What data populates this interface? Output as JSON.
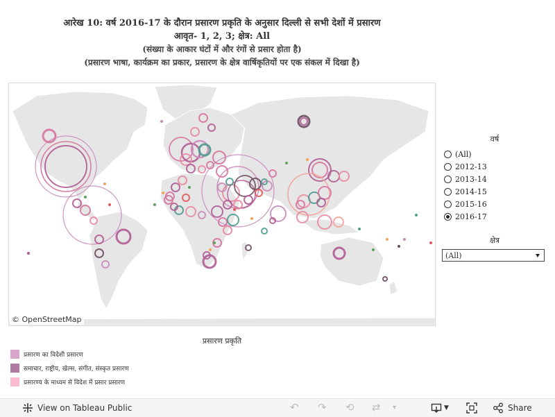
{
  "title": {
    "line1": "आरेख 10: वर्ष   2016-17 के दौरान प्रसारण प्रकृति के अनुसार दिल्ली से सभी देशों में प्रसारण",
    "line2": "आवृत- 1, 2, 3; क्षेत्र:  All",
    "line3": "(संख्या के आकार घंटों में और रंगों से प्रसार होता है)",
    "line4": "(प्रसारण भाषा, कार्यक्रम का प्रकार, प्रसारण के क्षेत्र वार्षिकृतियों पर एक संकल में दिखा है)"
  },
  "map": {
    "attribution": "© OpenStreetMap",
    "land_color": "#e6e6e6",
    "ocean_color": "#ffffff"
  },
  "filters": {
    "year": {
      "title": "वर्ष",
      "options": [
        "(All)",
        "2012-13",
        "2013-14",
        "2014-15",
        "2015-16",
        "2016-17"
      ],
      "selected": "2016-17"
    },
    "region": {
      "title": "क्षेत्र",
      "selected_value": "(All)"
    }
  },
  "legend": {
    "title": "प्रसारण प्रकृति",
    "items": [
      {
        "label": "प्रसारण का विदेशी प्रसारण",
        "color": "#d8a6c9"
      },
      {
        "label": "समाचार, राष्ट्रीय, खेल्स, संगीत, संस्कृत प्रसारण",
        "color": "#b07aa1"
      },
      {
        "label": "प्रसारण्य के माध्यम से विदेश में प्रसार प्रसारण",
        "color": "#fbbcd0"
      }
    ]
  },
  "colors": {
    "pink": "#d6739d",
    "magenta": "#b05c93",
    "rose": "#e88aa0",
    "mauve": "#c989b8",
    "dark": "#6d4d5f",
    "teal": "#4f9a8e",
    "green": "#5ba05a",
    "orange": "#f2a25c",
    "red": "#e0585b",
    "salmon": "#f5a19a"
  },
  "toolbar": {
    "view_label": "View on Tableau Public",
    "share_label": "Share"
  }
}
